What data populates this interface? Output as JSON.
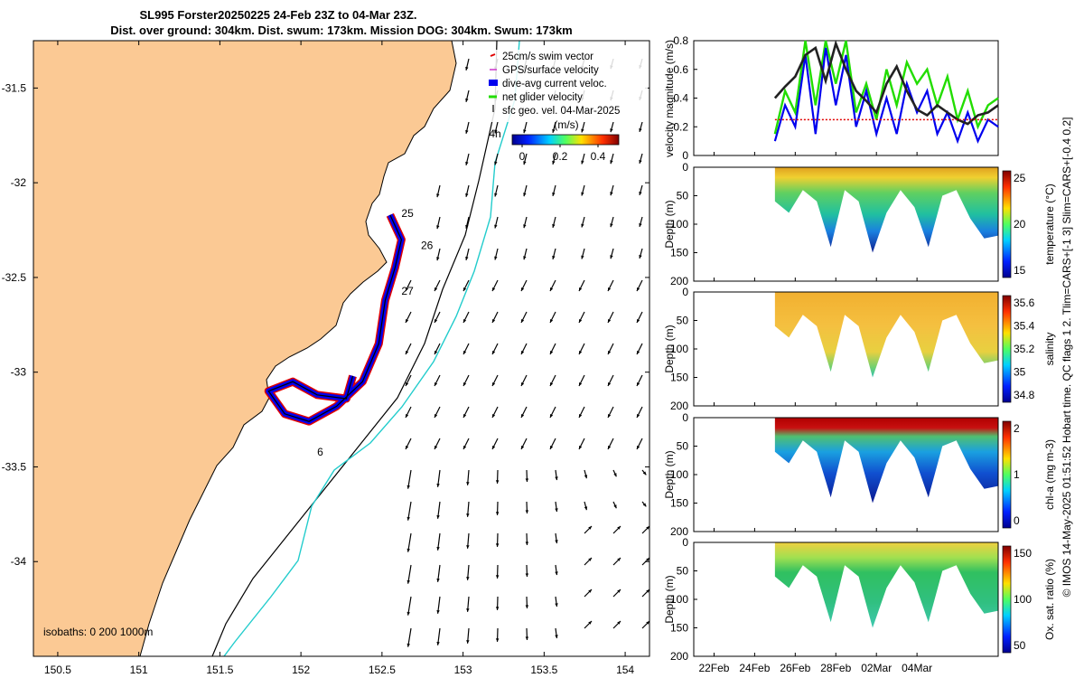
{
  "header": {
    "title_line1": "SL995 Forster20250225 24-Feb 23Z to 04-Mar 23Z.",
    "title_line2": "Dist. over ground: 304km. Dist. swum: 173km. Mission DOG: 304km. Swum: 173km"
  },
  "side_note": "© IMOS 14-May-2025 01:51:52 Hobart time. QC flags 1  2. Tlim=CARS+[-1 3] Slim=CARS+[-0.4 0.2]",
  "colors": {
    "land": "#fbc994",
    "swim_vector": "#e00000",
    "gps_velocity": "#cc33cc",
    "dive_current": "#0000ee",
    "net_velocity": "#22dd00",
    "isobath_200": "#000000",
    "isobath_1000": "#22cccc"
  },
  "chart_data": [
    {
      "type": "map",
      "legend": [
        {
          "label": "25cm/s swim vector",
          "key": "swim_vector"
        },
        {
          "label": "GPS/surface velocity",
          "key": "gps_velocity"
        },
        {
          "label": "dive-avg current veloc.",
          "key": "dive_current"
        },
        {
          "label": "net glider velocity",
          "key": "net_velocity"
        },
        {
          "label": "sfc geo. vel. 04-Mar-2025",
          "key": "sfc_geo"
        }
      ],
      "colorbar": {
        "label": "(m/s)",
        "ticks": [
          "0",
          "0.2",
          "0.4"
        ],
        "range": [
          0,
          0.5
        ]
      },
      "xlim": [
        150.35,
        154.15
      ],
      "ylim": [
        -34.5,
        -31.25
      ],
      "xticks": [
        150.5,
        151,
        151.5,
        152,
        152.5,
        153,
        153.5,
        154
      ],
      "xtick_labels": [
        "150.5",
        "151",
        "151.5",
        "152",
        "152.5",
        "153",
        "153.5",
        "154"
      ],
      "yticks": [
        -31.5,
        -32,
        -32.5,
        -33,
        -33.5,
        -34
      ],
      "ytick_labels": [
        "-31.5",
        "-32",
        "-32.5",
        "-33",
        "-33.5",
        "-34"
      ],
      "day_labels": [
        {
          "label": "25",
          "lon": 152.62,
          "lat": -32.18
        },
        {
          "label": "26",
          "lon": 152.74,
          "lat": -32.35
        },
        {
          "label": "27",
          "lon": 152.62,
          "lat": -32.59
        },
        {
          "label": "6",
          "lon": 152.1,
          "lat": -33.44
        },
        {
          "label": "4h",
          "lon": 153.16,
          "lat": -31.76
        }
      ],
      "isobath_note": "isobaths: 0   200  1000m",
      "track": [
        [
          152.55,
          -32.17
        ],
        [
          152.62,
          -32.3
        ],
        [
          152.58,
          -32.45
        ],
        [
          152.52,
          -32.62
        ],
        [
          152.48,
          -32.85
        ],
        [
          152.38,
          -33.05
        ],
        [
          152.22,
          -33.18
        ],
        [
          152.05,
          -33.26
        ],
        [
          151.9,
          -33.22
        ],
        [
          151.8,
          -33.1
        ],
        [
          151.95,
          -33.05
        ],
        [
          152.1,
          -33.12
        ],
        [
          152.28,
          -33.14
        ],
        [
          152.32,
          -33.02
        ]
      ]
    },
    {
      "type": "line",
      "ylabel": "velocity magnitude (m/s)",
      "ylim": [
        0,
        0.8
      ],
      "yticks": [
        "0",
        "0.2",
        "0.4",
        "0.6",
        "0.8"
      ],
      "x": [
        25.0,
        25.5,
        26.0,
        26.5,
        27.0,
        27.5,
        28.0,
        28.5,
        29.0,
        29.5,
        30.0,
        30.5,
        31.0,
        31.5,
        32.0,
        32.5,
        33.0,
        33.5,
        34.0,
        34.5,
        35.0,
        35.5,
        36.0
      ],
      "series": [
        {
          "name": "net glider velocity",
          "key": "net_velocity",
          "values": [
            0.15,
            0.45,
            0.3,
            0.8,
            0.35,
            0.8,
            0.5,
            0.8,
            0.3,
            0.5,
            0.25,
            0.6,
            0.35,
            0.65,
            0.5,
            0.6,
            0.35,
            0.55,
            0.25,
            0.45,
            0.2,
            0.35,
            0.4
          ]
        },
        {
          "name": "dive-avg current veloc.",
          "key": "dive_current",
          "values": [
            0.1,
            0.35,
            0.2,
            0.7,
            0.15,
            0.75,
            0.35,
            0.7,
            0.2,
            0.45,
            0.15,
            0.4,
            0.15,
            0.5,
            0.3,
            0.45,
            0.15,
            0.3,
            0.1,
            0.3,
            0.1,
            0.25,
            0.2
          ]
        },
        {
          "name": "sfc geo. vel. 04-Mar-2025",
          "key": "sfc_geo",
          "values": [
            0.4,
            0.48,
            0.55,
            0.7,
            0.75,
            0.52,
            0.78,
            0.6,
            0.45,
            0.38,
            0.3,
            0.5,
            0.62,
            0.45,
            0.32,
            0.28,
            0.35,
            0.3,
            0.25,
            0.22,
            0.28,
            0.3,
            0.35
          ]
        },
        {
          "name": "swim speed",
          "key": "swim_vector",
          "values": [
            0.25,
            0.25,
            0.25,
            0.25,
            0.25,
            0.25,
            0.25,
            0.25,
            0.25,
            0.25,
            0.25,
            0.25,
            0.25,
            0.25,
            0.25,
            0.25,
            0.25,
            0.25,
            0.25,
            0.25,
            0.25,
            0.25,
            0.25
          ]
        }
      ]
    },
    {
      "type": "heatmap",
      "ylabel": "Depth (m)",
      "cbar_label": "temperature (°C)",
      "cbar_ticks": [
        "25",
        "20",
        "15"
      ],
      "ylim": [
        200,
        0
      ],
      "yticks": [
        "0",
        "50",
        "100",
        "150",
        "200"
      ]
    },
    {
      "type": "heatmap",
      "ylabel": "Depth (m)",
      "cbar_label": "salinity",
      "cbar_ticks": [
        "35.6",
        "35.4",
        "35.2",
        "35",
        "34.8"
      ],
      "ylim": [
        200,
        0
      ],
      "yticks": [
        "0",
        "50",
        "100",
        "150",
        "200"
      ]
    },
    {
      "type": "heatmap",
      "ylabel": "Depth (m)",
      "cbar_label": "chl-a (mg m-3)",
      "cbar_ticks": [
        "2",
        "1",
        "0"
      ],
      "ylim": [
        200,
        0
      ],
      "yticks": [
        "0",
        "50",
        "100",
        "150",
        "200"
      ]
    },
    {
      "type": "heatmap",
      "ylabel": "Depth (m)",
      "cbar_label": "Ox. sat. ratio (%)",
      "cbar_ticks": [
        "150",
        "100",
        "50"
      ],
      "ylim": [
        200,
        0
      ],
      "yticks": [
        "0",
        "50",
        "100",
        "150",
        "200"
      ]
    }
  ],
  "time_axis": {
    "labels": [
      "22Feb",
      "24Feb",
      "26Feb",
      "28Feb",
      "02Mar",
      "04Mar"
    ],
    "days": [
      22,
      24,
      26,
      28,
      30,
      32
    ],
    "xlim": [
      21,
      36
    ]
  },
  "profile_bottom_m": [
    60,
    80,
    40,
    60,
    140,
    40,
    60,
    150,
    80,
    40,
    70,
    140,
    50,
    40,
    90,
    125,
    120
  ]
}
